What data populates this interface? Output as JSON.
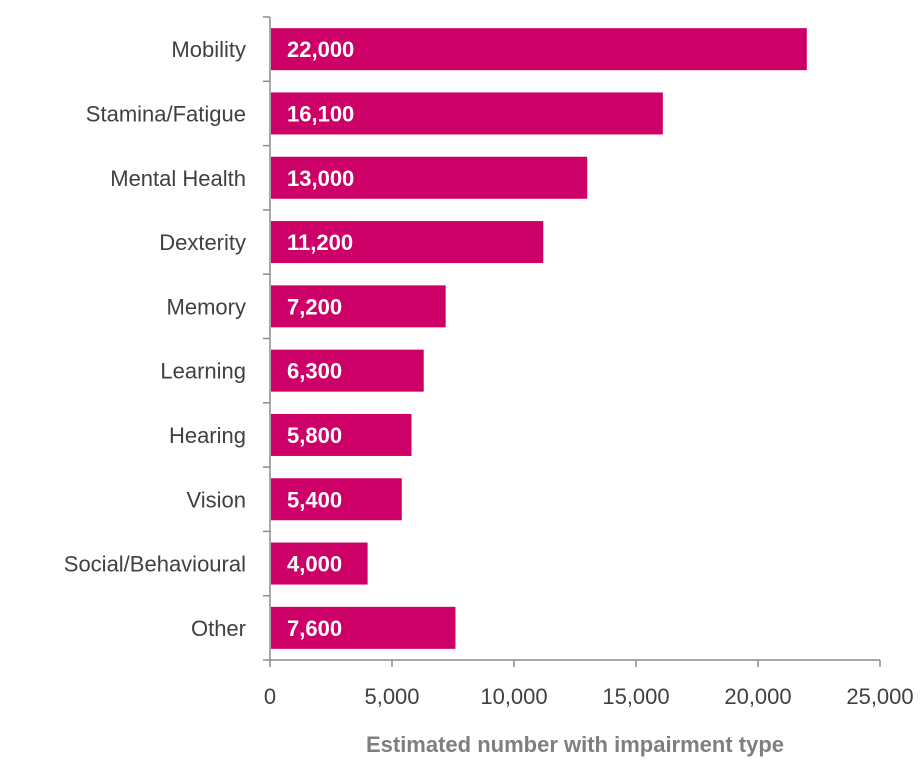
{
  "chart_data": {
    "type": "bar",
    "orientation": "horizontal",
    "categories": [
      "Mobility",
      "Stamina/Fatigue",
      "Mental Health",
      "Dexterity",
      "Memory",
      "Learning",
      "Hearing",
      "Vision",
      "Social/Behavioural",
      "Other"
    ],
    "values": [
      22000,
      16100,
      13000,
      11200,
      7200,
      6300,
      5800,
      5400,
      4000,
      7600
    ],
    "data_labels": [
      "22,000",
      "16,100",
      "13,000",
      "11,200",
      "7,200",
      "6,300",
      "5,800",
      "5,400",
      "4,000",
      "7,600"
    ],
    "title": "",
    "xlabel": "Estimated number with impairment type",
    "ylabel": "",
    "xlim": [
      0,
      25000
    ],
    "x_ticks": [
      0,
      5000,
      10000,
      15000,
      20000,
      25000
    ],
    "x_tick_labels": [
      "0",
      "5,000",
      "10,000",
      "15,000",
      "20,000",
      "25,000"
    ],
    "bar_color": "#cc0066",
    "grid": false,
    "legend": "none"
  }
}
